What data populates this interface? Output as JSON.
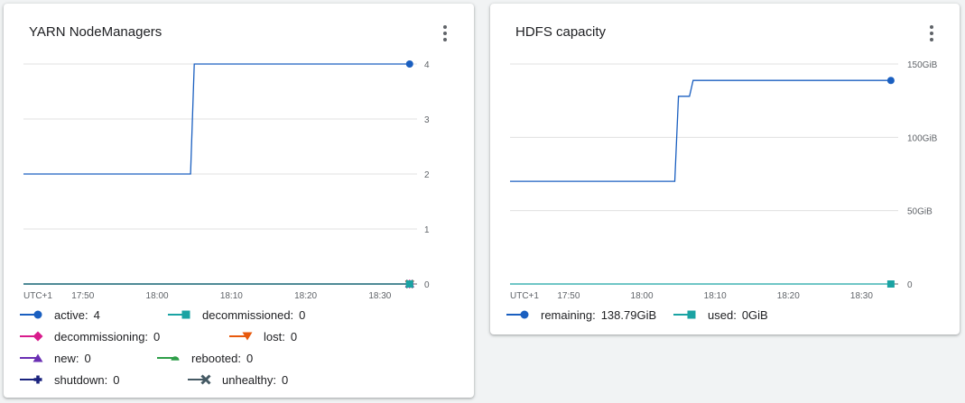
{
  "cards": [
    {
      "title": "YARN NodeManagers",
      "timezone_label": "UTC+1",
      "chart_data": {
        "type": "line",
        "title": "YARN NodeManagers",
        "x_ticks": [
          "17:50",
          "18:00",
          "18:10",
          "18:20",
          "18:30"
        ],
        "y_ticks": [
          "0",
          "1",
          "2",
          "3",
          "4"
        ],
        "ylim": [
          0,
          4
        ],
        "xlim": [
          "17:42",
          "18:35"
        ],
        "grid": true,
        "legend_position": "bottom",
        "series": [
          {
            "name": "active",
            "legend_value": "4",
            "color": "#1a5fc0",
            "marker": "circle",
            "points": [
              [
                "17:42",
                2
              ],
              [
                "18:04.5",
                2
              ],
              [
                "18:05",
                4
              ],
              [
                "18:34",
                4
              ]
            ]
          },
          {
            "name": "decommissioned",
            "legend_value": "0",
            "color": "#1aa3a3",
            "marker": "square",
            "points": [
              [
                "17:42",
                0
              ],
              [
                "18:34",
                0
              ]
            ]
          },
          {
            "name": "decommissioning",
            "legend_value": "0",
            "color": "#d81b8c",
            "marker": "diamond",
            "points": [
              [
                "17:42",
                0
              ],
              [
                "18:34",
                0
              ]
            ]
          },
          {
            "name": "lost",
            "legend_value": "0",
            "color": "#e8590c",
            "marker": "triangle-down",
            "points": [
              [
                "17:42",
                0
              ],
              [
                "18:34",
                0
              ]
            ]
          },
          {
            "name": "new",
            "legend_value": "0",
            "color": "#6a2fb3",
            "marker": "triangle-up",
            "points": [
              [
                "17:42",
                0
              ],
              [
                "18:34",
                0
              ]
            ]
          },
          {
            "name": "rebooted",
            "legend_value": "0",
            "color": "#2e9e48",
            "marker": "semicircle",
            "points": [
              [
                "17:42",
                0
              ],
              [
                "18:34",
                0
              ]
            ]
          },
          {
            "name": "shutdown",
            "legend_value": "0",
            "color": "#1a237e",
            "marker": "plus",
            "points": [
              [
                "17:42",
                0
              ],
              [
                "18:34",
                0
              ]
            ]
          },
          {
            "name": "unhealthy",
            "legend_value": "0",
            "color": "#455a64",
            "marker": "cross",
            "points": [
              [
                "17:42",
                0
              ],
              [
                "18:34",
                0
              ]
            ]
          }
        ]
      }
    },
    {
      "title": "HDFS capacity",
      "timezone_label": "UTC+1",
      "chart_data": {
        "type": "line",
        "title": "HDFS capacity",
        "x_ticks": [
          "17:50",
          "18:00",
          "18:10",
          "18:20",
          "18:30"
        ],
        "y_ticks": [
          "0",
          "50GiB",
          "100GiB",
          "150GiB"
        ],
        "y_tick_values": [
          0,
          50,
          100,
          150
        ],
        "ylim": [
          0,
          150
        ],
        "xlim": [
          "17:42",
          "18:35"
        ],
        "grid": true,
        "legend_position": "bottom",
        "series": [
          {
            "name": "remaining",
            "legend_value": "138.79GiB",
            "color": "#1a5fc0",
            "marker": "circle",
            "points": [
              [
                "17:42",
                70
              ],
              [
                "18:04.5",
                70
              ],
              [
                "18:05",
                128
              ],
              [
                "18:06.5",
                128
              ],
              [
                "18:07",
                138.79
              ],
              [
                "18:34",
                138.79
              ]
            ]
          },
          {
            "name": "used",
            "legend_value": "0GiB",
            "color": "#1aa3a3",
            "marker": "square",
            "points": [
              [
                "17:42",
                0
              ],
              [
                "18:34",
                0
              ]
            ]
          }
        ]
      }
    }
  ]
}
